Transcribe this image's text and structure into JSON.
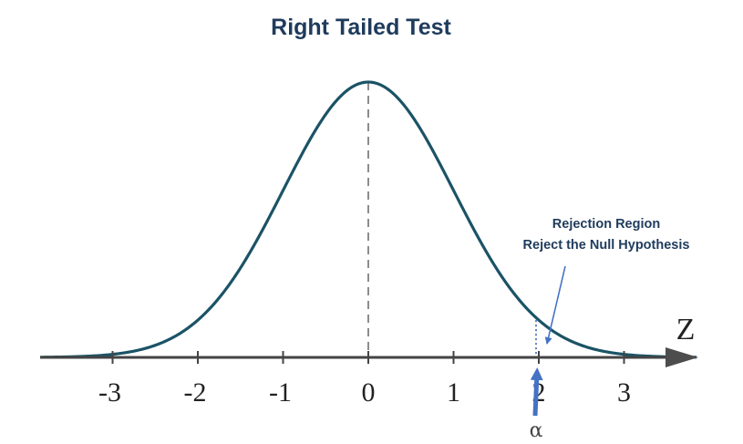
{
  "title": "Right Tailed Test",
  "annotation": {
    "line1": "Rejection Region",
    "line2": "Reject the Null Hypothesis"
  },
  "axis": {
    "name": "Z",
    "ticks": [
      -3,
      -2,
      -1,
      0,
      1,
      2,
      3
    ],
    "tick_labels": [
      "-3",
      "-2",
      "-1",
      "0",
      "1",
      "2",
      "3"
    ],
    "xlim": [
      -3.85,
      3.85
    ]
  },
  "critical_value": {
    "z": 2,
    "label": "α"
  },
  "colors": {
    "curve": "#1b5366",
    "title": "#1f3b5c",
    "axis": "#444444",
    "arrow": "#4472c4",
    "mean_line": "#8c8c8c"
  }
}
